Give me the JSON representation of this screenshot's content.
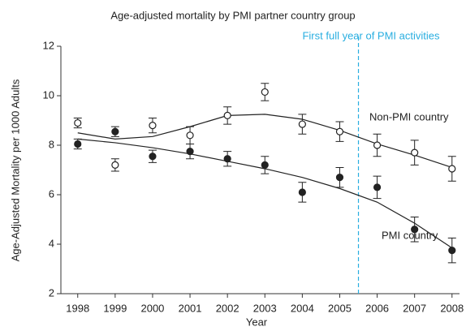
{
  "chart_data": {
    "type": "scatter",
    "title": "Age-adjusted mortality by PMI partner country group",
    "x_label": "Year",
    "y_label": "Age-Adjusted Mortality per 1000 Adults",
    "x": [
      1998,
      1999,
      2000,
      2001,
      2002,
      2003,
      2004,
      2005,
      2006,
      2007,
      2008
    ],
    "xlim": [
      1997.55,
      2008.2
    ],
    "xticks": [
      1998,
      1999,
      2000,
      2001,
      2002,
      2003,
      2004,
      2005,
      2006,
      2007,
      2008
    ],
    "ylim": [
      2,
      12
    ],
    "yticks": [
      2,
      4,
      6,
      8,
      10,
      12
    ],
    "series": [
      {
        "name": "Non-PMI country",
        "color": "#222222",
        "marker": "open",
        "values": [
          8.9,
          7.2,
          8.8,
          8.4,
          9.2,
          10.15,
          8.85,
          8.55,
          8.0,
          7.7,
          7.05
        ],
        "errors": [
          0.2,
          0.25,
          0.3,
          0.35,
          0.35,
          0.35,
          0.4,
          0.4,
          0.45,
          0.5,
          0.5
        ],
        "fit": [
          8.5,
          8.25,
          8.35,
          8.75,
          9.2,
          9.25,
          9.05,
          8.6,
          8.05,
          7.6,
          7.1
        ]
      },
      {
        "name": "PMI country",
        "color": "#222222",
        "marker": "filled",
        "values": [
          8.05,
          8.55,
          7.55,
          7.75,
          7.45,
          7.2,
          6.1,
          6.7,
          6.3,
          4.6,
          3.75
        ],
        "errors": [
          0.2,
          0.2,
          0.25,
          0.3,
          0.3,
          0.35,
          0.4,
          0.4,
          0.45,
          0.5,
          0.5
        ],
        "fit": [
          8.25,
          8.1,
          7.9,
          7.65,
          7.35,
          7.05,
          6.7,
          6.25,
          5.7,
          4.85,
          3.85
        ]
      }
    ],
    "reference_line": {
      "x": 2005.5,
      "label": "First full year of PMI activities",
      "color": "#29aee0"
    }
  }
}
